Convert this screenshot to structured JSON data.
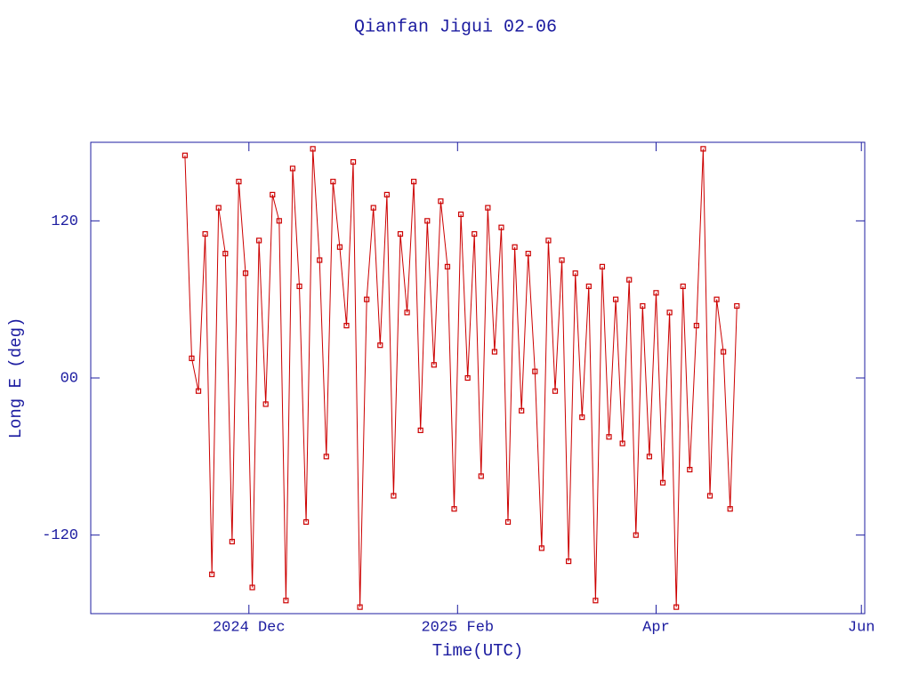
{
  "chart_data": {
    "type": "line",
    "title": "Qianfan Jigui 02-06",
    "xlabel": "Time(UTC)",
    "ylabel": "Long E (deg)",
    "color": "#cc0000",
    "axis_color": "#1c1ca0",
    "xlim": [
      "2024-10-15",
      "2025-06-02"
    ],
    "xticks": [
      {
        "value": "2024-12-01",
        "label": "2024 Dec"
      },
      {
        "value": "2025-02-01",
        "label": "2025 Feb"
      },
      {
        "value": "2025-04-01",
        "label": "Apr"
      },
      {
        "value": "2025-06-01",
        "label": "Jun"
      }
    ],
    "ylim": [
      -180,
      180
    ],
    "yticks": [
      {
        "value": 120,
        "label": "120"
      },
      {
        "value": 0,
        "label": "00"
      },
      {
        "value": -120,
        "label": "-120"
      }
    ],
    "x": [
      "2024-11-12",
      "2024-11-14",
      "2024-11-16",
      "2024-11-18",
      "2024-11-20",
      "2024-11-22",
      "2024-11-24",
      "2024-11-26",
      "2024-11-28",
      "2024-11-30",
      "2024-12-02",
      "2024-12-04",
      "2024-12-06",
      "2024-12-08",
      "2024-12-10",
      "2024-12-12",
      "2024-12-14",
      "2024-12-16",
      "2024-12-18",
      "2024-12-20",
      "2024-12-22",
      "2024-12-24",
      "2024-12-26",
      "2024-12-28",
      "2024-12-30",
      "2025-01-01",
      "2025-01-03",
      "2025-01-05",
      "2025-01-07",
      "2025-01-09",
      "2025-01-11",
      "2025-01-13",
      "2025-01-15",
      "2025-01-17",
      "2025-01-19",
      "2025-01-21",
      "2025-01-23",
      "2025-01-25",
      "2025-01-27",
      "2025-01-29",
      "2025-01-31",
      "2025-02-02",
      "2025-02-04",
      "2025-02-06",
      "2025-02-08",
      "2025-02-10",
      "2025-02-12",
      "2025-02-14",
      "2025-02-16",
      "2025-02-18",
      "2025-02-20",
      "2025-02-22",
      "2025-02-24",
      "2025-02-26",
      "2025-02-28",
      "2025-03-02",
      "2025-03-04",
      "2025-03-06",
      "2025-03-08",
      "2025-03-10",
      "2025-03-12",
      "2025-03-14",
      "2025-03-16",
      "2025-03-18",
      "2025-03-20",
      "2025-03-22",
      "2025-03-24",
      "2025-03-26",
      "2025-03-28",
      "2025-03-30",
      "2025-04-01",
      "2025-04-03",
      "2025-04-05",
      "2025-04-07",
      "2025-04-09",
      "2025-04-11",
      "2025-04-13",
      "2025-04-15",
      "2025-04-17",
      "2025-04-19",
      "2025-04-21",
      "2025-04-23",
      "2025-04-25"
    ],
    "values": [
      170,
      15,
      -10,
      110,
      -150,
      130,
      95,
      -125,
      150,
      80,
      -160,
      105,
      -20,
      140,
      120,
      -170,
      160,
      70,
      -110,
      175,
      90,
      -60,
      150,
      100,
      40,
      165,
      -175,
      60,
      130,
      25,
      140,
      -90,
      110,
      50,
      150,
      -40,
      120,
      10,
      135,
      85,
      -100,
      125,
      0,
      110,
      -75,
      130,
      20,
      115,
      -110,
      100,
      -25,
      95,
      5,
      -130,
      105,
      -10,
      90,
      -140,
      80,
      -30,
      70,
      -170,
      85,
      -45,
      60,
      -50,
      75,
      -120,
      55,
      -60,
      65,
      -80,
      50,
      -175,
      70,
      -70,
      40,
      175,
      -90,
      60,
      20,
      -100,
      55
    ]
  }
}
